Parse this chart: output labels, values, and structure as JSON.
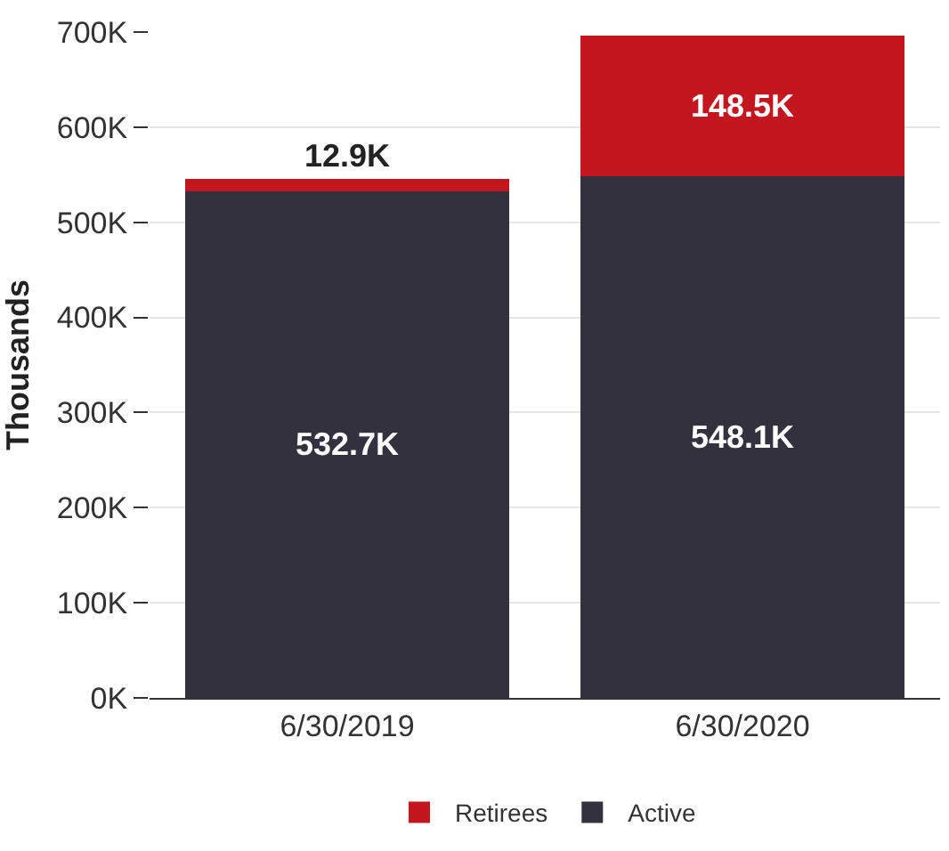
{
  "chart_data": {
    "type": "bar",
    "stacked": true,
    "ylabel": "Thousands",
    "categories": [
      "6/30/2019",
      "6/30/2020"
    ],
    "series": [
      {
        "name": "Active",
        "color": "#34313f",
        "values": [
          532.7,
          548.1
        ],
        "value_labels": [
          "532.7K",
          "548.1K"
        ]
      },
      {
        "name": "Retirees",
        "color": "#c3161f",
        "values": [
          12.9,
          148.5
        ],
        "value_labels": [
          "12.9K",
          "148.5K"
        ]
      }
    ],
    "ylim": [
      0,
      700
    ],
    "yticks": [
      {
        "value": 0,
        "label": "0K"
      },
      {
        "value": 100,
        "label": "100K"
      },
      {
        "value": 200,
        "label": "200K"
      },
      {
        "value": 300,
        "label": "300K"
      },
      {
        "value": 400,
        "label": "400K"
      },
      {
        "value": 500,
        "label": "500K"
      },
      {
        "value": 600,
        "label": "600K"
      },
      {
        "value": 700,
        "label": "700K"
      }
    ],
    "grid": "y",
    "legend": "bottom"
  }
}
